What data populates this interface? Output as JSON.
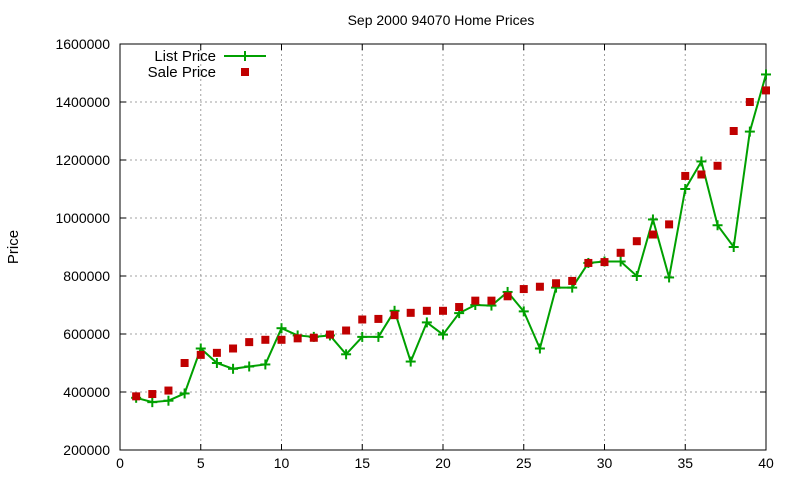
{
  "chart_data": {
    "type": "line",
    "title": "Sep 2000 94070 Home Prices",
    "xlabel": "",
    "ylabel": "Price",
    "xlim": [
      0,
      40
    ],
    "ylim": [
      200000,
      1600000
    ],
    "xticks": [
      0,
      5,
      10,
      15,
      20,
      25,
      30,
      35,
      40
    ],
    "yticks": [
      200000,
      400000,
      600000,
      800000,
      1000000,
      1200000,
      1400000,
      1600000
    ],
    "grid": true,
    "legend_position": "top-left",
    "series": [
      {
        "name": "List Price",
        "style": "linespoints",
        "marker": "plus",
        "color": "#00a000",
        "x": [
          1,
          2,
          3,
          4,
          5,
          6,
          7,
          8,
          9,
          10,
          11,
          12,
          13,
          14,
          15,
          16,
          17,
          18,
          19,
          20,
          21,
          22,
          23,
          24,
          25,
          26,
          27,
          28,
          29,
          30,
          31,
          32,
          33,
          34,
          35,
          36,
          37,
          38,
          39,
          40
        ],
        "values": [
          380000,
          365000,
          370000,
          395000,
          550000,
          500000,
          480000,
          488000,
          495000,
          620000,
          595000,
          590000,
          595000,
          530000,
          590000,
          590000,
          680000,
          505000,
          640000,
          598000,
          672000,
          700000,
          698000,
          745000,
          678000,
          550000,
          760000,
          760000,
          845000,
          850000,
          850000,
          800000,
          995000,
          795000,
          1100000,
          1195000,
          975000,
          900000,
          1298000,
          1495000
        ]
      },
      {
        "name": "Sale Price",
        "style": "points",
        "marker": "square",
        "color": "#c00000",
        "x": [
          1,
          2,
          3,
          4,
          5,
          6,
          7,
          8,
          9,
          10,
          11,
          12,
          13,
          14,
          15,
          16,
          17,
          18,
          19,
          20,
          21,
          22,
          23,
          24,
          25,
          26,
          27,
          28,
          29,
          30,
          31,
          32,
          33,
          34,
          35,
          36,
          37,
          38,
          39,
          40
        ],
        "values": [
          385000,
          393000,
          405000,
          500000,
          528000,
          535000,
          550000,
          572000,
          580000,
          580000,
          585000,
          587000,
          598000,
          612000,
          650000,
          652000,
          665000,
          673000,
          680000,
          680000,
          693000,
          715000,
          715000,
          730000,
          755000,
          763000,
          775000,
          783000,
          845000,
          848000,
          880000,
          920000,
          943000,
          978000,
          1145000,
          1150000,
          1180000,
          1300000,
          1400000,
          1440000
        ]
      }
    ]
  }
}
